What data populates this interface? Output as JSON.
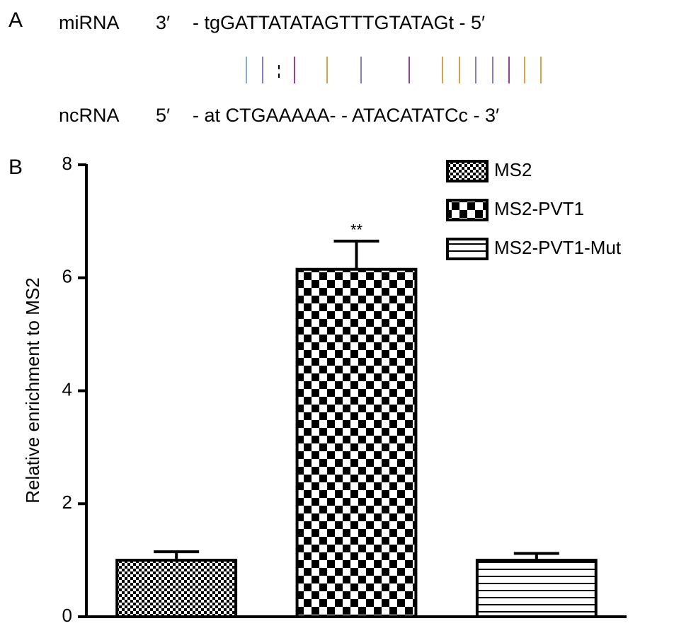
{
  "panel_a": {
    "label": "A",
    "rows": [
      {
        "name": "miRNA",
        "end": "3′",
        "sequence": "- tgGATTATATAGTTTGTATAGt - 5′"
      },
      {
        "name": "ncRNA",
        "end": "5′",
        "sequence": "- at CTGAAAAA- - ATACATATCc - 3′"
      }
    ]
  },
  "panel_b": {
    "label": "B"
  },
  "chart_data": {
    "type": "bar",
    "ylabel": "Relative enrichment to MS2",
    "annotation": "**",
    "series": [
      {
        "name": "MS2",
        "pattern": "fine-check",
        "values": [
          1.0
        ],
        "errors": [
          0.15
        ]
      },
      {
        "name": "MS2-PVT1",
        "pattern": "coarse-check",
        "values": [
          6.15
        ],
        "errors": [
          0.5
        ]
      },
      {
        "name": "MS2-PVT1-Mut",
        "pattern": "stripes",
        "values": [
          1.0
        ],
        "errors": [
          0.12
        ]
      }
    ],
    "ylim": [
      0,
      8
    ],
    "yticks": [
      0,
      2,
      4,
      6,
      8
    ]
  }
}
